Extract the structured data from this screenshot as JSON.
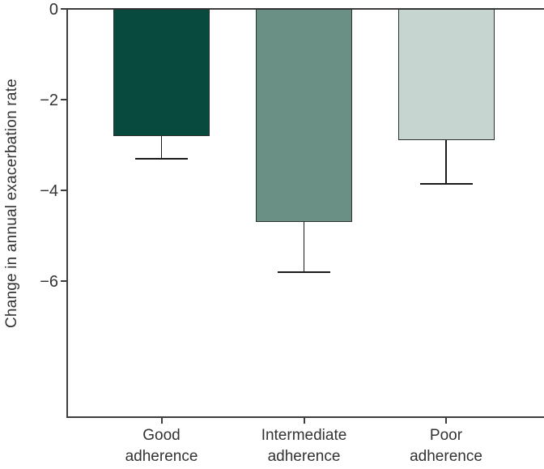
{
  "chart_data": {
    "type": "bar",
    "title": "",
    "ylabel": "Change in annual exacerbation rate",
    "xlabel": "",
    "categories": [
      "Good adherence",
      "Intermediate adherence",
      "Poor adherence"
    ],
    "category_label_lines": [
      [
        "Good",
        "adherence"
      ],
      [
        "Intermediate",
        "adherence"
      ],
      [
        "Poor",
        "adherence"
      ]
    ],
    "values": [
      -2.8,
      -4.7,
      -2.9
    ],
    "error_lower": [
      0.5,
      1.1,
      0.95
    ],
    "error_whisker_endpoints": [
      -3.3,
      -5.8,
      -3.85
    ],
    "bar_colors": [
      "#094a3e",
      "#6a9086",
      "#c6d5d0"
    ],
    "bar_border_color": "#2c312f",
    "axis_color": "#3d3d3d",
    "error_bar_color": "#1a1a1a",
    "yticks": [
      0,
      -2,
      -4,
      -6
    ],
    "ytick_labels": [
      "0",
      "−2",
      "−4",
      "−6"
    ],
    "ylim": [
      -9,
      0
    ],
    "grid": false,
    "legend": null,
    "orientation": "vertical",
    "error_direction": "lower-only",
    "background": "#ffffff"
  }
}
